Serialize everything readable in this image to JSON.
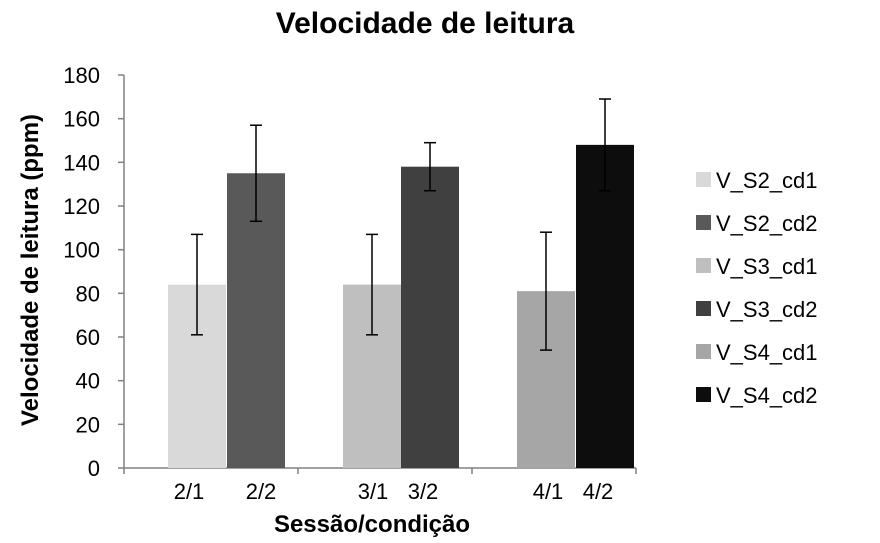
{
  "chart_data": {
    "type": "bar",
    "title": "Velocidade de leitura",
    "xlabel": "Sessão/condição",
    "ylabel": "Velocidade de leitura (ppm)",
    "ylim": [
      0,
      180
    ],
    "yticks": [
      "0",
      "20",
      "40",
      "60",
      "80",
      "100",
      "120",
      "140",
      "160",
      "180"
    ],
    "grid": false,
    "legend_position": "right",
    "bars": [
      {
        "series": "V_S2_cd1",
        "label": "2/1",
        "value": 84,
        "error": 23,
        "color": "#d9d9d9"
      },
      {
        "series": "V_S2_cd2",
        "label": "2/2",
        "value": 135,
        "error": 22,
        "color": "#595959"
      },
      {
        "series": "V_S3_cd1",
        "label": "3/1",
        "value": 84,
        "error": 23,
        "color": "#bfbfbf"
      },
      {
        "series": "V_S3_cd2",
        "label": "3/2",
        "value": 138,
        "error": 11,
        "color": "#404040"
      },
      {
        "series": "V_S4_cd1",
        "label": "4/1",
        "value": 81,
        "error": 27,
        "color": "#a6a6a6"
      },
      {
        "series": "V_S4_cd2",
        "label": "4/2",
        "value": 148,
        "error": 21,
        "color": "#0d0d0d"
      }
    ],
    "legend": [
      {
        "name": "V_S2_cd1",
        "color": "#d9d9d9"
      },
      {
        "name": "V_S2_cd2",
        "color": "#595959"
      },
      {
        "name": "V_S3_cd1",
        "color": "#bfbfbf"
      },
      {
        "name": "V_S3_cd2",
        "color": "#404040"
      },
      {
        "name": "V_S4_cd1",
        "color": "#a6a6a6"
      },
      {
        "name": "V_S4_cd2",
        "color": "#0d0d0d"
      }
    ]
  }
}
